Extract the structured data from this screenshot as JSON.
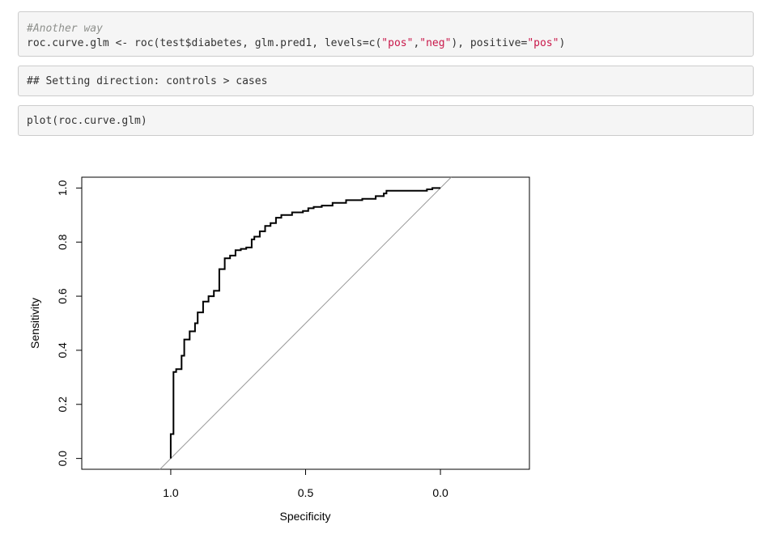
{
  "code_blocks": {
    "block1": {
      "comment": "#Another way",
      "line2_a": "roc.curve.glm <- roc(test$diabetes, glm.pred1, levels=c(",
      "line2_s1": "\"pos\"",
      "line2_b": ",",
      "line2_s2": "\"neg\"",
      "line2_c": "), positive=",
      "line2_s3": "\"pos\"",
      "line2_d": ")"
    },
    "output": "## Setting direction: controls > cases",
    "block3": "plot(roc.curve.glm)"
  },
  "colors": {
    "code_bg": "#f5f5f5",
    "string": "#c9184a",
    "comment": "#8e908c"
  },
  "chart_data": {
    "type": "line",
    "xlabel": "Specificity",
    "ylabel": "Sensitivity",
    "x_reversed": true,
    "xlim": [
      1.33,
      -0.33
    ],
    "ylim": [
      -0.04,
      1.04
    ],
    "xticks": [
      1.0,
      0.5,
      0.0
    ],
    "xtick_labels": [
      "1.0",
      "0.5",
      "0.0"
    ],
    "yticks": [
      0.0,
      0.2,
      0.4,
      0.6,
      0.8,
      1.0
    ],
    "ytick_labels": [
      "0.0",
      "0.2",
      "0.4",
      "0.6",
      "0.8",
      "1.0"
    ],
    "grid": false,
    "series": [
      {
        "specificity": [
          1.0,
          1.0,
          0.99,
          0.99,
          0.99,
          0.98,
          0.98,
          0.96,
          0.96,
          0.95,
          0.95,
          0.93,
          0.93,
          0.91,
          0.91,
          0.9,
          0.9,
          0.88,
          0.88,
          0.86,
          0.86,
          0.84,
          0.84,
          0.82,
          0.82,
          0.8,
          0.8,
          0.78,
          0.78,
          0.76,
          0.76,
          0.74,
          0.74,
          0.72,
          0.72,
          0.7,
          0.7,
          0.69,
          0.69,
          0.67,
          0.67,
          0.65,
          0.65,
          0.63,
          0.63,
          0.61,
          0.61,
          0.59,
          0.59,
          0.55,
          0.55,
          0.51,
          0.51,
          0.49,
          0.49,
          0.47,
          0.47,
          0.44,
          0.44,
          0.4,
          0.4,
          0.35,
          0.35,
          0.29,
          0.29,
          0.24,
          0.24,
          0.21,
          0.21,
          0.2,
          0.2,
          0.05,
          0.05,
          0.03,
          0.03,
          0.0
        ],
        "sensitivity": [
          0.0,
          0.09,
          0.09,
          0.2,
          0.32,
          0.32,
          0.33,
          0.33,
          0.38,
          0.38,
          0.44,
          0.44,
          0.47,
          0.47,
          0.5,
          0.5,
          0.54,
          0.54,
          0.58,
          0.58,
          0.6,
          0.6,
          0.62,
          0.62,
          0.7,
          0.7,
          0.74,
          0.74,
          0.75,
          0.75,
          0.77,
          0.77,
          0.775,
          0.775,
          0.78,
          0.78,
          0.81,
          0.81,
          0.82,
          0.82,
          0.84,
          0.84,
          0.86,
          0.86,
          0.87,
          0.87,
          0.89,
          0.89,
          0.9,
          0.9,
          0.91,
          0.91,
          0.915,
          0.915,
          0.925,
          0.925,
          0.93,
          0.93,
          0.935,
          0.935,
          0.945,
          0.945,
          0.955,
          0.955,
          0.96,
          0.96,
          0.97,
          0.97,
          0.98,
          0.98,
          0.99,
          0.99,
          0.995,
          0.995,
          1.0,
          1.0
        ]
      }
    ],
    "reference_line": {
      "specificity": [
        1.33,
        -0.33
      ],
      "sensitivity": [
        -0.33,
        1.33
      ]
    }
  }
}
